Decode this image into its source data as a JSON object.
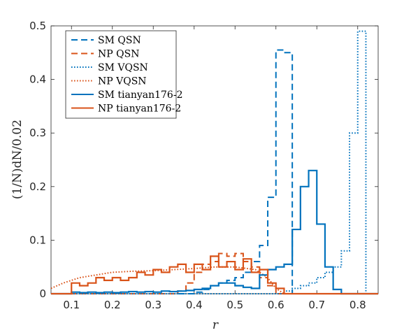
{
  "chart_data": {
    "type": "line",
    "xlabel": "r",
    "ylabel": "(1/N)dN/0.02",
    "xlim": [
      0.05,
      0.85
    ],
    "ylim": [
      0,
      0.5
    ],
    "xticks": [
      "0.1",
      "0.2",
      "0.3",
      "0.4",
      "0.5",
      "0.6",
      "0.7",
      "0.8"
    ],
    "yticks": [
      "0",
      "0.1",
      "0.2",
      "0.3",
      "0.4",
      "0.5"
    ],
    "legend_position": "top-left",
    "colors": {
      "SM": "#0072BD",
      "NP": "#D95319"
    },
    "series": [
      {
        "name": "SM QSN",
        "color": "#0072BD",
        "dash": "dashed",
        "step": true,
        "x": [
          0.05,
          0.4,
          0.42,
          0.44,
          0.46,
          0.48,
          0.5,
          0.52,
          0.54,
          0.56,
          0.58,
          0.6,
          0.62,
          0.64,
          0.85
        ],
        "y": [
          0,
          0.003,
          0.008,
          0.015,
          0.02,
          0.025,
          0.03,
          0.04,
          0.06,
          0.09,
          0.18,
          0.455,
          0.45,
          0,
          0
        ]
      },
      {
        "name": "NP QSN",
        "color": "#D95319",
        "dash": "dashed",
        "step": true,
        "x": [
          0.05,
          0.34,
          0.36,
          0.38,
          0.4,
          0.42,
          0.44,
          0.46,
          0.48,
          0.5,
          0.52,
          0.54,
          0.56,
          0.58,
          0.6,
          0.85
        ],
        "y": [
          0,
          0,
          0.005,
          0.02,
          0.04,
          0.055,
          0.06,
          0.075,
          0.07,
          0.075,
          0.06,
          0.05,
          0.03,
          0.015,
          0,
          0
        ]
      },
      {
        "name": "SM VQSN",
        "color": "#0072BD",
        "dash": "dotted",
        "step": true,
        "x": [
          0.05,
          0.62,
          0.64,
          0.66,
          0.68,
          0.7,
          0.72,
          0.74,
          0.76,
          0.78,
          0.8,
          0.82,
          0.85
        ],
        "y": [
          0,
          0.005,
          0.01,
          0.015,
          0.02,
          0.03,
          0.04,
          0.05,
          0.08,
          0.3,
          0.49,
          0,
          0
        ]
      },
      {
        "name": "NP VQSN",
        "color": "#D95319",
        "dash": "dotted",
        "step": false,
        "x": [
          0.05,
          0.08,
          0.12,
          0.16,
          0.2,
          0.25,
          0.3,
          0.35,
          0.4,
          0.45,
          0.5,
          0.55,
          0.58,
          0.6,
          0.62,
          0.85
        ],
        "y": [
          0.01,
          0.02,
          0.03,
          0.035,
          0.04,
          0.042,
          0.043,
          0.045,
          0.047,
          0.05,
          0.05,
          0.045,
          0.03,
          0.01,
          0,
          0
        ]
      },
      {
        "name": "SM tianyan176-2",
        "color": "#0072BD",
        "dash": "solid",
        "step": true,
        "x": [
          0.05,
          0.1,
          0.12,
          0.14,
          0.16,
          0.18,
          0.2,
          0.22,
          0.24,
          0.26,
          0.28,
          0.3,
          0.32,
          0.34,
          0.36,
          0.38,
          0.4,
          0.42,
          0.44,
          0.46,
          0.48,
          0.5,
          0.52,
          0.54,
          0.56,
          0.58,
          0.6,
          0.62,
          0.64,
          0.66,
          0.68,
          0.7,
          0.72,
          0.74,
          0.76,
          0.85
        ],
        "y": [
          0,
          0.003,
          0.002,
          0.003,
          0.002,
          0.003,
          0.002,
          0.003,
          0.004,
          0.003,
          0.004,
          0.003,
          0.005,
          0.004,
          0.005,
          0.006,
          0.008,
          0.01,
          0.015,
          0.02,
          0.02,
          0.015,
          0.012,
          0.01,
          0.035,
          0.045,
          0.05,
          0.055,
          0.12,
          0.2,
          0.23,
          0.13,
          0.05,
          0.008,
          0,
          0
        ]
      },
      {
        "name": "NP tianyan176-2",
        "color": "#D95319",
        "dash": "solid",
        "step": true,
        "x": [
          0.05,
          0.1,
          0.12,
          0.14,
          0.16,
          0.18,
          0.2,
          0.22,
          0.24,
          0.26,
          0.28,
          0.3,
          0.32,
          0.34,
          0.36,
          0.38,
          0.4,
          0.42,
          0.44,
          0.46,
          0.48,
          0.5,
          0.52,
          0.54,
          0.56,
          0.58,
          0.6,
          0.62,
          0.85
        ],
        "y": [
          0,
          0.02,
          0.015,
          0.02,
          0.03,
          0.025,
          0.03,
          0.025,
          0.03,
          0.04,
          0.035,
          0.045,
          0.04,
          0.05,
          0.055,
          0.04,
          0.055,
          0.045,
          0.07,
          0.05,
          0.06,
          0.045,
          0.065,
          0.04,
          0.045,
          0.02,
          0.01,
          0,
          0
        ]
      }
    ]
  }
}
